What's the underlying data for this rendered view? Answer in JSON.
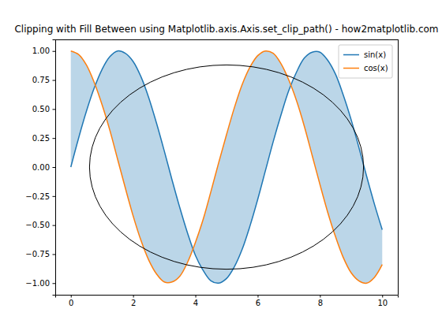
{
  "chart_data": {
    "type": "fill_between",
    "title": "Clipping with Fill Between using Matplotlib.axis.Axis.set_clip_path() - how2matplotlib.com",
    "x": [
      0,
      0.25,
      0.5,
      0.75,
      1,
      1.25,
      1.5,
      1.75,
      2,
      2.25,
      2.5,
      2.75,
      3,
      3.25,
      3.5,
      3.75,
      4,
      4.25,
      4.5,
      4.75,
      5,
      5.25,
      5.5,
      5.75,
      6,
      6.25,
      6.5,
      6.75,
      7,
      7.25,
      7.5,
      7.75,
      8,
      8.25,
      8.5,
      8.75,
      9,
      9.25,
      9.5,
      9.75,
      10
    ],
    "series": [
      {
        "name": "sin(x)",
        "color": "#1f77b4",
        "values": [
          0.0,
          0.25,
          0.48,
          0.68,
          0.84,
          0.95,
          1.0,
          0.98,
          0.91,
          0.78,
          0.6,
          0.38,
          0.14,
          -0.11,
          -0.35,
          -0.57,
          -0.76,
          -0.89,
          -0.98,
          -1.0,
          -0.96,
          -0.86,
          -0.71,
          -0.51,
          -0.28,
          -0.03,
          0.22,
          0.45,
          0.66,
          0.82,
          0.94,
          0.99,
          0.99,
          0.92,
          0.8,
          0.62,
          0.41,
          0.17,
          -0.08,
          -0.32,
          -0.54
        ]
      },
      {
        "name": "cos(x)",
        "color": "#ff7f0e",
        "values": [
          1.0,
          0.97,
          0.88,
          0.73,
          0.54,
          0.32,
          0.07,
          -0.18,
          -0.42,
          -0.63,
          -0.8,
          -0.92,
          -0.99,
          -0.99,
          -0.94,
          -0.82,
          -0.65,
          -0.45,
          -0.21,
          0.04,
          0.28,
          0.51,
          0.71,
          0.86,
          0.96,
          1.0,
          0.98,
          0.89,
          0.75,
          0.57,
          0.35,
          0.1,
          -0.15,
          -0.39,
          -0.6,
          -0.78,
          -0.91,
          -0.98,
          -1.0,
          -0.95,
          -0.84
        ]
      }
    ],
    "shapes": [
      {
        "type": "ellipse",
        "cx": 5,
        "cy": 0,
        "width": 8.8,
        "height": 1.76
      }
    ],
    "xlim": [
      -0.5,
      10.5
    ],
    "xticks": [
      0,
      2,
      4,
      6,
      8,
      10
    ],
    "ylim": [
      -1.1,
      1.1
    ],
    "yticks": [
      {
        "value": -1,
        "label": "−1.00"
      },
      {
        "value": -0.75,
        "label": "−0.75"
      },
      {
        "value": -0.5,
        "label": "−0.50"
      },
      {
        "value": -0.25,
        "label": "−0.25"
      },
      {
        "value": 0,
        "label": "0.00"
      },
      {
        "value": 0.25,
        "label": "0.25"
      },
      {
        "value": 0.5,
        "label": "0.50"
      },
      {
        "value": 0.75,
        "label": "0.75"
      },
      {
        "value": 1,
        "label": "1.00"
      }
    ],
    "legend": "upper right"
  }
}
